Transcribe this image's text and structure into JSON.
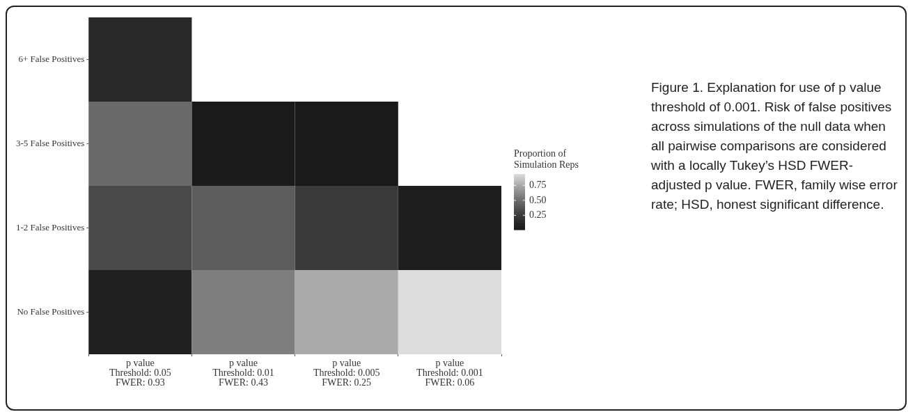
{
  "chart_data": {
    "type": "heatmap",
    "categories": [
      "p value\nThreshold: 0.05\nFWER: 0.93",
      "p value\nThreshold: 0.01\nFWER: 0.43",
      "p value\nThreshold: 0.005\nFWER: 0.25",
      "p value\nThreshold: 0.001\nFWER: 0.06"
    ],
    "y_categories": [
      "6+ False Positives",
      "3-5 False Positives",
      "1-2 False Positives",
      "No False Positives"
    ],
    "cells": [
      [
        0.13,
        null,
        null,
        null
      ],
      [
        0.48,
        0.01,
        0.01,
        null
      ],
      [
        0.32,
        0.42,
        0.24,
        0.06
      ],
      [
        0.07,
        0.57,
        0.75,
        0.94
      ]
    ],
    "clabel": "Proportion of\nSimulation Reps",
    "clim": [
      0.01,
      0.94
    ],
    "cticks": [
      {
        "value": 0.25,
        "label": "0.25"
      },
      {
        "value": 0.5,
        "label": "0.50"
      },
      {
        "value": 0.75,
        "label": "0.75"
      }
    ],
    "annotations": [
      "Figure 1.  Explanation for use of p value threshold of 0.001. Risk of false positives across simulations of the null data when all pairwise comparisons are considered with a locally Tukey’s HSD FWER-adjusted p value. FWER, family wise error rate; HSD, honest significant difference."
    ]
  }
}
